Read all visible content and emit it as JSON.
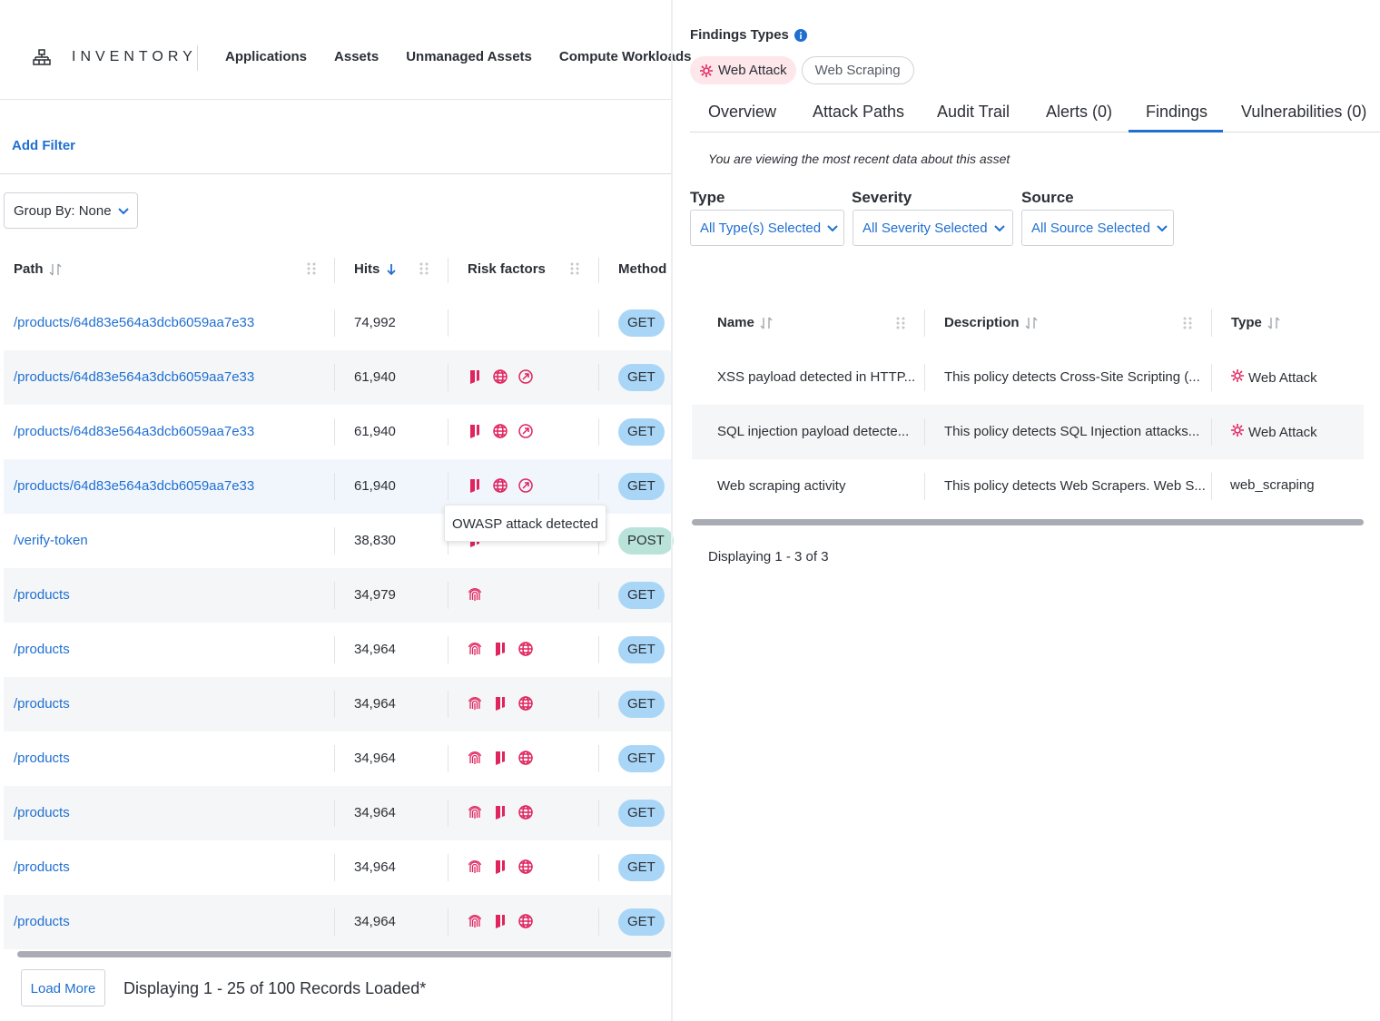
{
  "nav": {
    "brand": "INVENTORY",
    "brand_icon": "inventory-icon",
    "links": [
      "Applications",
      "Assets",
      "Unmanaged Assets",
      "Compute Workloads"
    ]
  },
  "filters": {
    "add_filter": "Add Filter"
  },
  "group_by": {
    "label": "Group By:",
    "value": "None"
  },
  "endpoints_table": {
    "columns": {
      "path": "Path",
      "hits": "Hits",
      "risk_factors": "Risk factors",
      "method": "Method"
    },
    "rows": [
      {
        "path": "/products/64d83e564a3dcb6059aa7e33",
        "hits": "74,992",
        "risks": [],
        "method": "GET"
      },
      {
        "path": "/products/64d83e564a3dcb6059aa7e33",
        "hits": "61,940",
        "risks": [
          "owasp-icon",
          "globe-icon",
          "bot-icon"
        ],
        "method": "GET"
      },
      {
        "path": "/products/64d83e564a3dcb6059aa7e33",
        "hits": "61,940",
        "risks": [
          "owasp-icon",
          "globe-icon",
          "bot-icon"
        ],
        "method": "GET"
      },
      {
        "path": "/products/64d83e564a3dcb6059aa7e33",
        "hits": "61,940",
        "risks": [
          "owasp-icon",
          "globe-icon",
          "bot-icon"
        ],
        "method": "GET"
      },
      {
        "path": "/verify-token",
        "hits": "38,830",
        "risks": [
          "owasp-icon"
        ],
        "method": "POST"
      },
      {
        "path": "/products",
        "hits": "34,979",
        "risks": [
          "fingerprint-icon"
        ],
        "method": "GET"
      },
      {
        "path": "/products",
        "hits": "34,964",
        "risks": [
          "fingerprint-icon",
          "owasp-icon",
          "globe-icon"
        ],
        "method": "GET"
      },
      {
        "path": "/products",
        "hits": "34,964",
        "risks": [
          "fingerprint-icon",
          "owasp-icon",
          "globe-icon"
        ],
        "method": "GET"
      },
      {
        "path": "/products",
        "hits": "34,964",
        "risks": [
          "fingerprint-icon",
          "owasp-icon",
          "globe-icon"
        ],
        "method": "GET"
      },
      {
        "path": "/products",
        "hits": "34,964",
        "risks": [
          "fingerprint-icon",
          "owasp-icon",
          "globe-icon"
        ],
        "method": "GET"
      },
      {
        "path": "/products",
        "hits": "34,964",
        "risks": [
          "fingerprint-icon",
          "owasp-icon",
          "globe-icon"
        ],
        "method": "GET"
      },
      {
        "path": "/products",
        "hits": "34,964",
        "risks": [
          "fingerprint-icon",
          "owasp-icon",
          "globe-icon"
        ],
        "method": "GET"
      }
    ],
    "tooltip": "OWASP attack detected",
    "load_more": "Load More",
    "displaying": "Displaying 1 - 25 of 100 Records Loaded*"
  },
  "details": {
    "findings_types_title": "Findings Types",
    "chips": [
      {
        "label": "Web Attack",
        "active": true
      },
      {
        "label": "Web Scraping",
        "active": false
      }
    ],
    "tabs": [
      "Overview",
      "Attack Paths",
      "Audit Trail",
      "Alerts (0)",
      "Findings",
      "Vulnerabilities (0)"
    ],
    "active_tab": "Findings",
    "viewing_note": "You are viewing the most recent data about this asset",
    "filters": [
      {
        "label": "Type",
        "value": "All Type(s) Selected"
      },
      {
        "label": "Severity",
        "value": "All Severity Selected"
      },
      {
        "label": "Source",
        "value": "All Source Selected"
      }
    ],
    "findings_table": {
      "columns": {
        "name": "Name",
        "description": "Description",
        "type": "Type"
      },
      "rows": [
        {
          "name": "XSS payload detected in HTTP...",
          "description": "This policy detects Cross-Site Scripting (...",
          "type": "Web Attack",
          "type_icon": true
        },
        {
          "name": "SQL injection payload detecte...",
          "description": "This policy detects SQL Injection attacks...",
          "type": "Web Attack",
          "type_icon": true
        },
        {
          "name": "Web scraping activity",
          "description": "This policy detects Web Scrapers. Web S...",
          "type": "web_scraping",
          "type_icon": false
        }
      ],
      "displaying": "Displaying 1 - 3 of 3"
    }
  },
  "colors": {
    "link": "#1f6fd1",
    "risk": "#e0245e",
    "get_badge": "#a9d6f7",
    "post_badge": "#b9e3d9",
    "active_chip": "#fde7ea"
  }
}
